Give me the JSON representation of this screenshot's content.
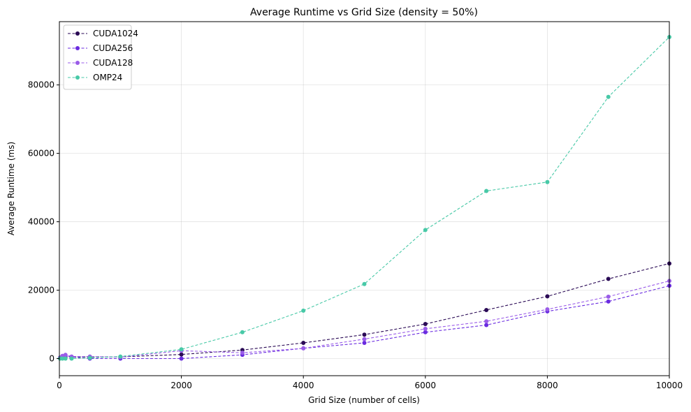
{
  "chart_data": {
    "type": "line",
    "title": "Average Runtime vs Grid Size (density = 50%)",
    "xlabel": "Grid Size (number of cells)",
    "ylabel": "Average Runtime (ms)",
    "xlim": [
      0,
      10000
    ],
    "ylim": [
      -5000,
      98500
    ],
    "xticks": [
      0,
      2000,
      4000,
      6000,
      8000,
      10000
    ],
    "yticks": [
      0,
      20000,
      40000,
      60000,
      80000
    ],
    "grid": true,
    "legend_position": "top-left",
    "x": [
      10,
      50,
      100,
      200,
      500,
      1000,
      2000,
      3000,
      4000,
      5000,
      6000,
      7000,
      8000,
      9000,
      10000
    ],
    "series": [
      {
        "name": "CUDA1024",
        "color": "#2a0a55",
        "values": [
          100,
          300,
          500,
          500,
          500,
          500,
          1200,
          2500,
          4600,
          7000,
          10100,
          14200,
          18200,
          23300,
          27800
        ]
      },
      {
        "name": "CUDA256",
        "color": "#6a2be0",
        "values": [
          100,
          400,
          800,
          500,
          0,
          0,
          0,
          1100,
          3000,
          4600,
          7700,
          9800,
          13800,
          16700,
          21300
        ]
      },
      {
        "name": "CUDA128",
        "color": "#9a5ce8",
        "values": [
          300,
          800,
          1100,
          600,
          600,
          400,
          2300,
          1700,
          3000,
          5700,
          8700,
          10900,
          14400,
          18100,
          22700
        ]
      },
      {
        "name": "OMP24",
        "color": "#48c9a7",
        "values": [
          0,
          0,
          0,
          0,
          200,
          600,
          2700,
          7700,
          14000,
          21800,
          37600,
          49000,
          51600,
          76500,
          94000
        ]
      }
    ]
  }
}
